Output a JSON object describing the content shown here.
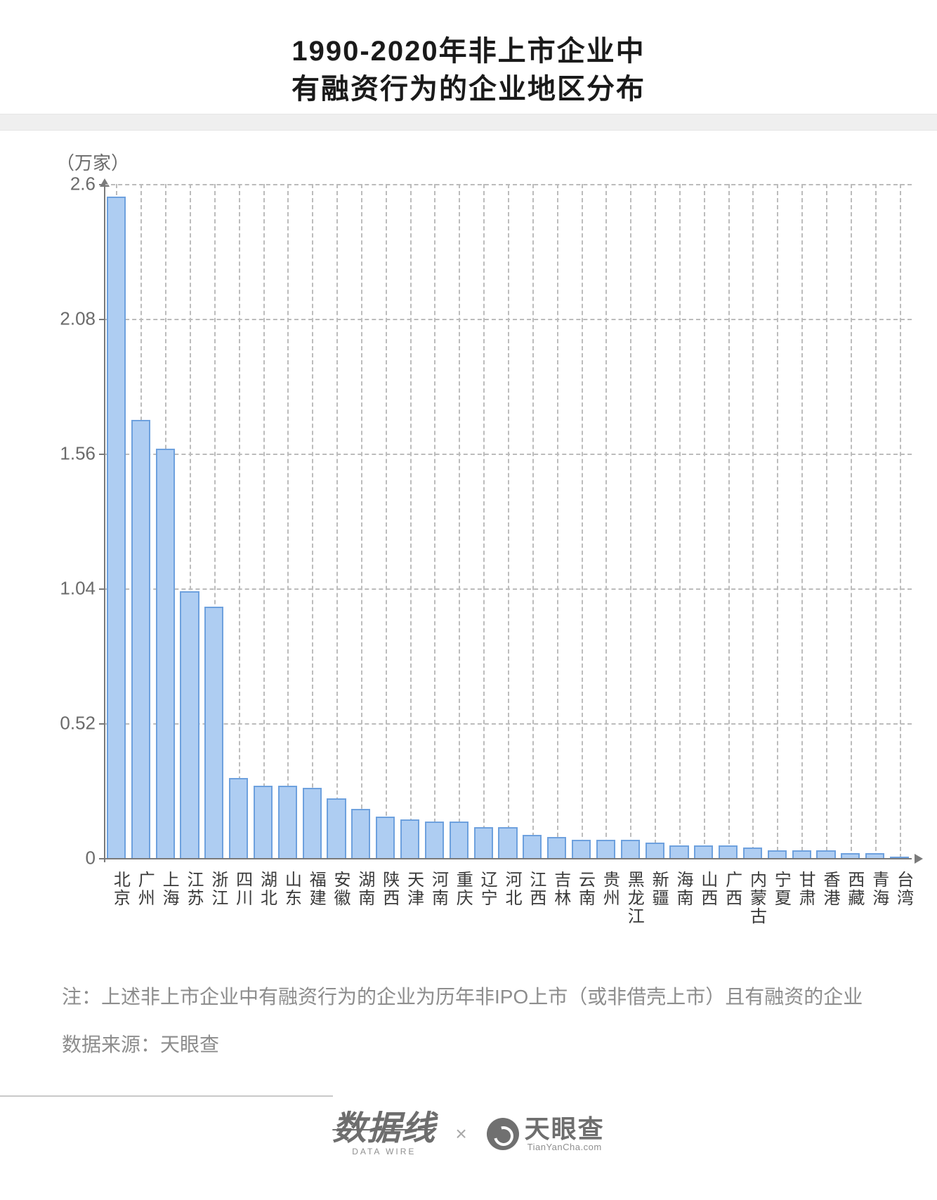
{
  "title": {
    "line1": "1990-2020年非上市企业中",
    "line2": "有融资行为的企业地区分布",
    "fontsize": 40,
    "color": "#1a1a1a"
  },
  "unit_label": "（万家）",
  "chart": {
    "type": "bar",
    "y": {
      "min": 0,
      "max": 2.6,
      "ticks": [
        0,
        0.52,
        1.04,
        1.56,
        2.08,
        2.6
      ],
      "tick_labels": [
        "0",
        "0.52",
        "1.04",
        "1.56",
        "2.08",
        "2.6"
      ],
      "label_fontsize": 26,
      "label_color": "#6b6b6b"
    },
    "grid_color": "#bcbcbc",
    "axis_color": "#7a7a7a",
    "bar_fill": "#aecdf2",
    "bar_border": "#6ea1de",
    "bar_border_width": 2,
    "bar_width_ratio": 0.78,
    "background_color": "#ffffff",
    "categories": [
      "北京",
      "广州",
      "上海",
      "江苏",
      "浙江",
      "四川",
      "湖北",
      "山东",
      "福建",
      "安徽",
      "湖南",
      "陕西",
      "天津",
      "河南",
      "重庆",
      "辽宁",
      "河北",
      "江西",
      "吉林",
      "云南",
      "贵州",
      "黑龙江",
      "新疆",
      "海南",
      "山西",
      "广西",
      "内蒙古",
      "宁夏",
      "甘肃",
      "香港",
      "西藏",
      "青海",
      "台湾"
    ],
    "values": [
      2.55,
      1.69,
      1.58,
      1.03,
      0.97,
      0.31,
      0.28,
      0.28,
      0.27,
      0.23,
      0.19,
      0.16,
      0.15,
      0.14,
      0.14,
      0.12,
      0.12,
      0.09,
      0.08,
      0.07,
      0.07,
      0.07,
      0.06,
      0.05,
      0.05,
      0.05,
      0.04,
      0.03,
      0.03,
      0.03,
      0.02,
      0.02,
      0.005
    ],
    "x_label_fontsize": 24,
    "x_label_color": "#3a3a3a"
  },
  "notes": {
    "note": "注：上述非上市企业中有融资行为的企业为历年非IPO上市（或非借壳上市）且有融资的企业",
    "source": "数据来源：天眼查",
    "fontsize": 28,
    "color": "#8d8d8d"
  },
  "credits": {
    "dw_main": "数据线",
    "dw_sub": "DATA WIRE",
    "cross": "×",
    "tyc_cn": "天眼查",
    "tyc_en": "TianYanCha.com"
  }
}
